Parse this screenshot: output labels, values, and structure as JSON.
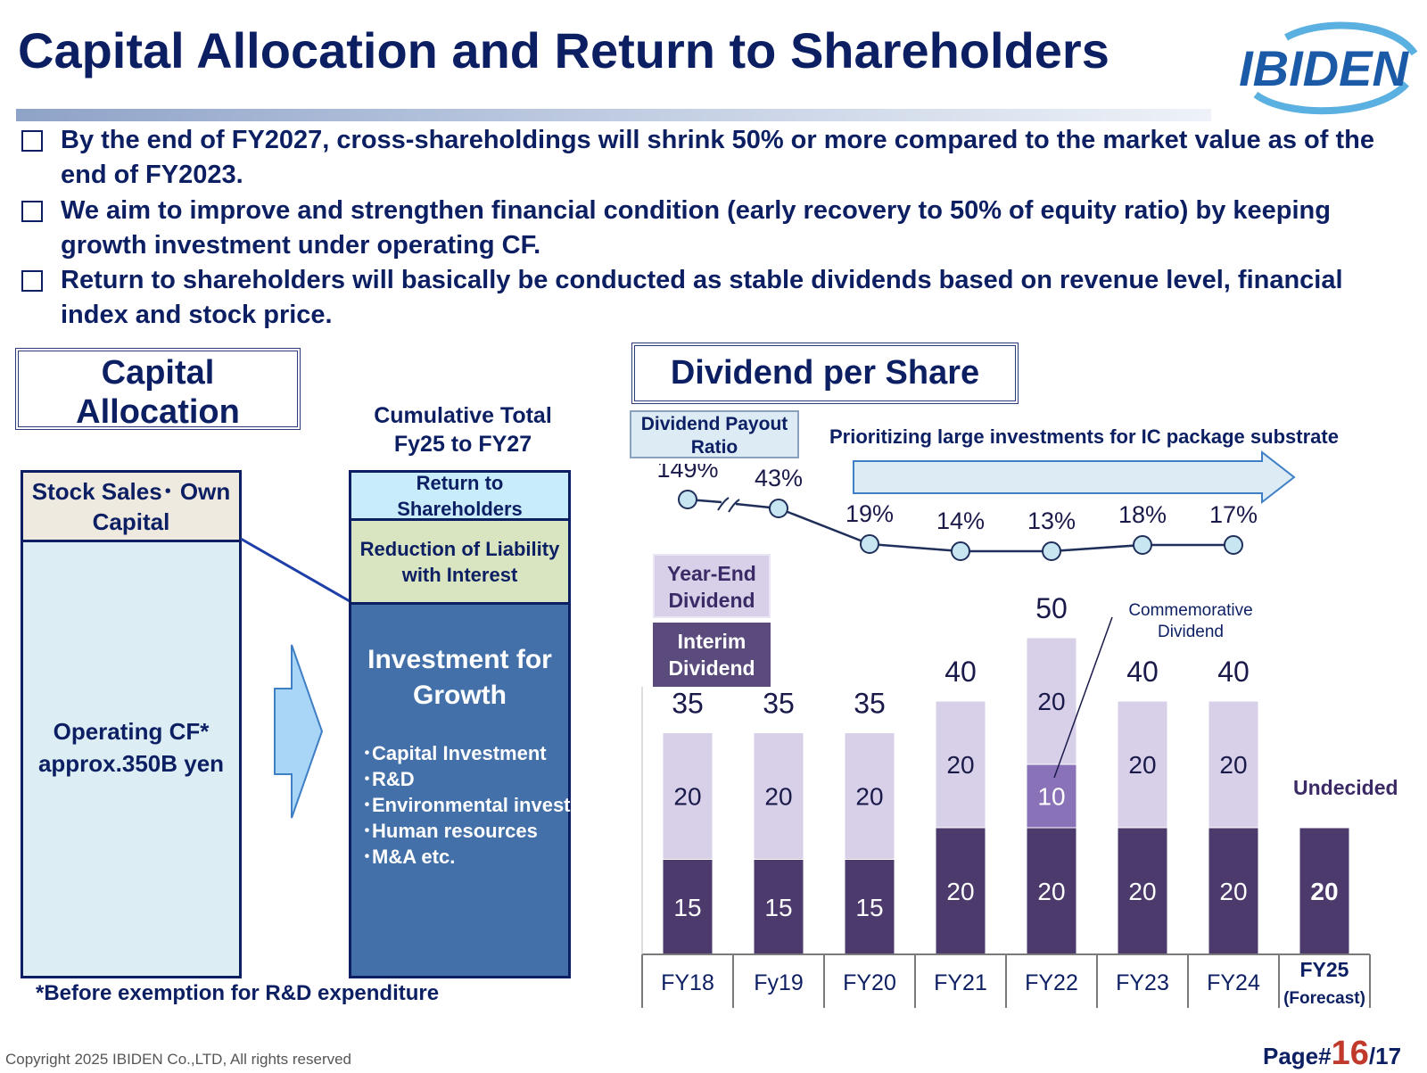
{
  "header": {
    "title": "Capital Allocation and Return to Shareholders",
    "logo_text": "IBIDEN"
  },
  "bullets": [
    "By the end of FY2027, cross-shareholdings will shrink 50% or more compared to the market value as of the end of FY2023.",
    "We aim to improve and strengthen financial condition (early recovery to 50% of equity ratio) by keeping growth investment under operating CF.",
    "Return to shareholders will basically be conducted as stable dividends based on revenue level, financial index and stock price."
  ],
  "capital_allocation": {
    "title": "Capital Allocation",
    "cumulative_label": "Cumulative Total Fy25 to FY27",
    "left_top": "Stock Sales･ Own Capital",
    "left_main_1": "Operating CF*",
    "left_main_2": "approx.350B yen",
    "right_return": "Return to Shareholders",
    "right_reduction": "Reduction of Liability with Interest",
    "right_investment_title": "Investment for Growth",
    "investment_items": [
      "･Capital Investment",
      "･R&D",
      "･Environmental investment",
      "･Human resources",
      "･M&A etc."
    ],
    "footnote": "*Before exemption for R&D expenditure"
  },
  "dividend": {
    "title": "Dividend per Share",
    "payout_label": "Dividend Payout Ratio",
    "arrow_label": "Prioritizing large investments for IC package substrate",
    "year_end_label": "Year-End Dividend",
    "interim_label": "Interim Dividend",
    "commemorative_label": "Commemorative Dividend",
    "undecided_label": "Undecided",
    "forecast_year": "FY25",
    "forecast_note": "(Forecast)"
  },
  "chart_data": {
    "type": "bar",
    "categories": [
      "FY18",
      "Fy19",
      "FY20",
      "FY21",
      "FY22",
      "FY23",
      "FY24",
      "FY25 (Forecast)"
    ],
    "series": [
      {
        "name": "Interim Dividend",
        "values": [
          15,
          15,
          15,
          20,
          20,
          20,
          20,
          20
        ]
      },
      {
        "name": "Commemorative Dividend",
        "values": [
          0,
          0,
          0,
          0,
          10,
          0,
          0,
          0
        ]
      },
      {
        "name": "Year-End Dividend",
        "values": [
          20,
          20,
          20,
          20,
          20,
          20,
          20,
          null
        ]
      }
    ],
    "totals": [
      35,
      35,
      35,
      40,
      50,
      40,
      40,
      null
    ],
    "payout_ratio": [
      "149%",
      "43%",
      "19%",
      "14%",
      "13%",
      "18%",
      "17%"
    ],
    "stacked": true,
    "colors": {
      "interim": "#4b3a6b",
      "commemorative": "#8a72b8",
      "year_end": "#d7d0e8",
      "line": "#1f2f5a",
      "marker": "#c8e6f2"
    }
  },
  "footer": {
    "copyright": "Copyright 2025 IBIDEN Co.,LTD, All rights reserved",
    "page_prefix": "Page#",
    "page_number": "16",
    "page_total": "/17"
  }
}
